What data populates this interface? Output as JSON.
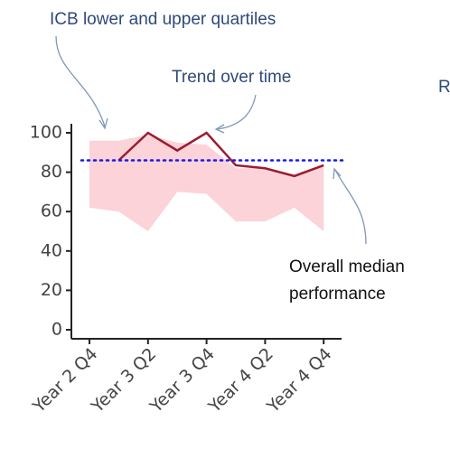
{
  "chart_data": {
    "type": "line",
    "categories": [
      "Year 2 Q4",
      null,
      "Year 3 Q2",
      null,
      "Year 3 Q4",
      null,
      "Year 4 Q2",
      null,
      "Year 4 Q4"
    ],
    "trend": {
      "color": "#9b1c31",
      "values": [
        null,
        86,
        100,
        91,
        100,
        83.5,
        82,
        78,
        83.5
      ]
    },
    "band": {
      "color": "#fbd3d9",
      "upper": [
        96,
        96,
        99,
        95,
        94,
        82,
        82,
        79,
        84
      ],
      "lower": [
        62,
        60,
        50,
        70,
        69,
        55,
        55,
        62,
        50
      ]
    },
    "median": {
      "color": "#1a1ae6",
      "value": 86
    },
    "ylim": [
      0,
      100
    ],
    "yticks": [
      0,
      20,
      40,
      60,
      80,
      100
    ],
    "annotations": [
      "ICB lower and upper quartiles",
      "Trend over time",
      "R",
      "Overall median",
      "performance"
    ]
  }
}
